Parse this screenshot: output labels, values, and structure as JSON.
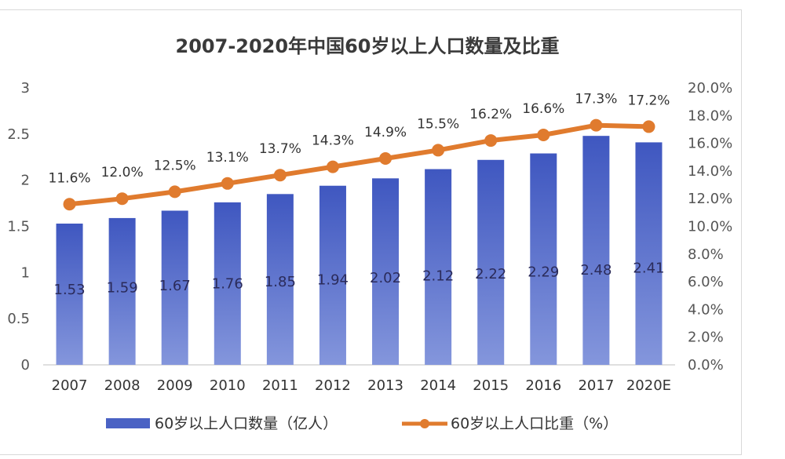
{
  "chart_data": {
    "type": "bar",
    "title": "2007-2020年中国60岁以上人口数量及比重",
    "categories": [
      "2007",
      "2008",
      "2009",
      "2010",
      "2011",
      "2012",
      "2013",
      "2014",
      "2015",
      "2016",
      "2017",
      "2020E"
    ],
    "series": [
      {
        "name": "60岁以上人口数量（亿人）",
        "type": "bar",
        "axis": "left",
        "values": [
          1.53,
          1.59,
          1.67,
          1.76,
          1.85,
          1.94,
          2.02,
          2.12,
          2.22,
          2.29,
          2.48,
          2.41
        ],
        "labels": [
          "1.53",
          "1.59",
          "1.67",
          "1.76",
          "1.85",
          "1.94",
          "2.02",
          "2.12",
          "2.22",
          "2.29",
          "2.48",
          "2.41"
        ],
        "color": "#4a62c4"
      },
      {
        "name": "60岁以上人口比重（%）",
        "type": "line",
        "axis": "right",
        "values": [
          11.6,
          12.0,
          12.5,
          13.1,
          13.7,
          14.3,
          14.9,
          15.5,
          16.2,
          16.6,
          17.3,
          17.2
        ],
        "labels": [
          "11.6%",
          "12.0%",
          "12.5%",
          "13.1%",
          "13.7%",
          "14.3%",
          "14.9%",
          "15.5%",
          "16.2%",
          "16.6%",
          "17.3%",
          "17.2%"
        ],
        "color": "#e07b2e"
      }
    ],
    "y_left": {
      "ylim": [
        0,
        3
      ],
      "ticks": [
        "0",
        "0.5",
        "1",
        "1.5",
        "2",
        "2.5",
        "3"
      ]
    },
    "y_right": {
      "ylim": [
        0,
        20
      ],
      "ticks": [
        "0.0%",
        "2.0%",
        "4.0%",
        "6.0%",
        "8.0%",
        "10.0%",
        "12.0%",
        "14.0%",
        "16.0%",
        "18.0%",
        "20.0%"
      ]
    },
    "grid": false,
    "legend_position": "bottom"
  }
}
